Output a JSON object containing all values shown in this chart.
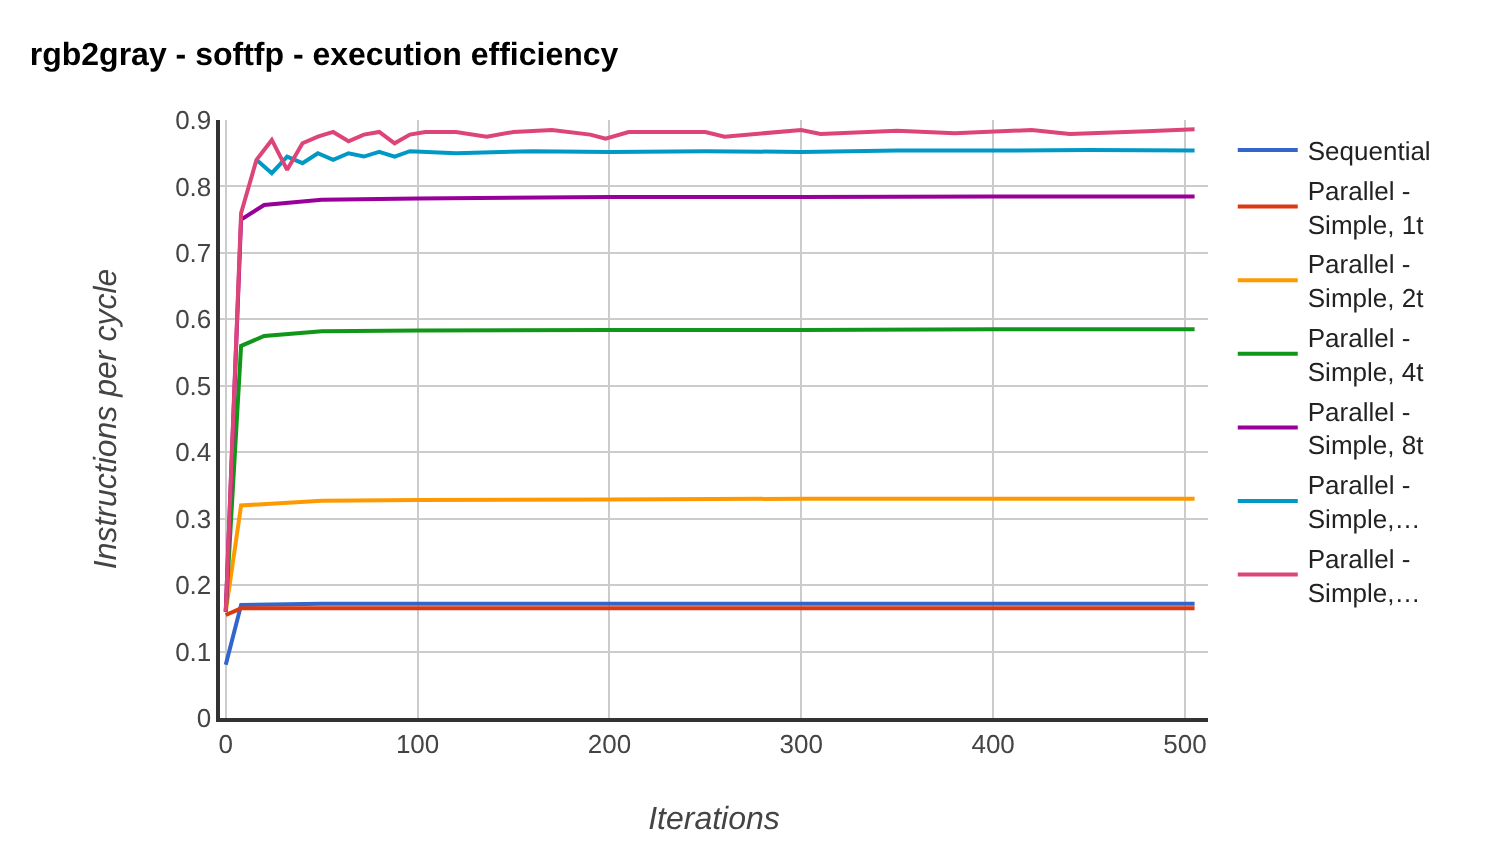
{
  "chart_data": {
    "type": "line",
    "title": "rgb2gray - softfp - execution efficiency",
    "xlabel": "Iterations",
    "ylabel": "Instructions per cycle",
    "xlim": [
      -3,
      512
    ],
    "xticks": [
      0,
      100,
      200,
      300,
      400,
      500
    ],
    "ylim": [
      0,
      0.9
    ],
    "yticks": [
      0,
      0.1,
      0.2,
      0.3,
      0.4,
      0.5,
      0.6,
      0.7,
      0.8,
      0.9
    ],
    "grid": true,
    "legend": "right",
    "series": [
      {
        "name": "Sequential",
        "color": "#3366cc",
        "x": [
          0,
          8,
          50,
          100,
          200,
          300,
          400,
          505
        ],
        "values": [
          0.08,
          0.17,
          0.172,
          0.172,
          0.172,
          0.172,
          0.172,
          0.172
        ]
      },
      {
        "name": "Parallel - Simple, 1t",
        "color": "#dc3912",
        "x": [
          0,
          8,
          50,
          100,
          200,
          300,
          400,
          505
        ],
        "values": [
          0.155,
          0.165,
          0.165,
          0.165,
          0.165,
          0.165,
          0.165,
          0.165
        ]
      },
      {
        "name": "Parallel - Simple, 2t",
        "color": "#ff9900",
        "x": [
          0,
          8,
          50,
          100,
          200,
          300,
          400,
          505
        ],
        "values": [
          0.16,
          0.32,
          0.327,
          0.328,
          0.329,
          0.33,
          0.33,
          0.33
        ]
      },
      {
        "name": "Parallel - Simple, 4t",
        "color": "#109618",
        "x": [
          0,
          8,
          20,
          50,
          100,
          200,
          300,
          400,
          505
        ],
        "values": [
          0.16,
          0.56,
          0.575,
          0.582,
          0.583,
          0.584,
          0.584,
          0.585,
          0.585
        ]
      },
      {
        "name": "Parallel - Simple, 8t",
        "color": "#990099",
        "x": [
          0,
          8,
          20,
          50,
          100,
          200,
          300,
          400,
          505
        ],
        "values": [
          0.16,
          0.75,
          0.772,
          0.78,
          0.782,
          0.784,
          0.784,
          0.785,
          0.785
        ]
      },
      {
        "name": "Parallel - Simple,…",
        "color": "#0099c6",
        "x": [
          16,
          24,
          32,
          40,
          48,
          56,
          64,
          72,
          80,
          88,
          96,
          120,
          160,
          200,
          250,
          300,
          350,
          400,
          450,
          505
        ],
        "values": [
          0.84,
          0.82,
          0.845,
          0.835,
          0.85,
          0.84,
          0.85,
          0.845,
          0.852,
          0.845,
          0.853,
          0.85,
          0.853,
          0.852,
          0.853,
          0.852,
          0.854,
          0.854,
          0.855,
          0.854
        ]
      },
      {
        "name": "Parallel - Simple,…",
        "color": "#dd4477",
        "x": [
          0,
          8,
          16,
          24,
          32,
          40,
          48,
          56,
          64,
          72,
          80,
          88,
          96,
          104,
          120,
          136,
          150,
          170,
          190,
          198,
          210,
          250,
          260,
          300,
          310,
          350,
          380,
          420,
          440,
          480,
          505
        ],
        "values": [
          0.16,
          0.76,
          0.84,
          0.87,
          0.825,
          0.865,
          0.875,
          0.882,
          0.868,
          0.878,
          0.882,
          0.865,
          0.878,
          0.882,
          0.882,
          0.875,
          0.882,
          0.885,
          0.878,
          0.872,
          0.882,
          0.882,
          0.875,
          0.885,
          0.879,
          0.884,
          0.88,
          0.885,
          0.879,
          0.883,
          0.886
        ]
      }
    ]
  }
}
